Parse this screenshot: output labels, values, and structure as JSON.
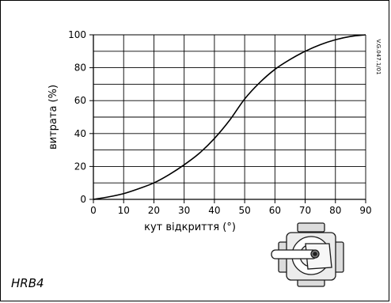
{
  "chart_data": {
    "type": "line",
    "title": "",
    "xlabel": "кут відкриття (°)",
    "ylabel": "витрата (%)",
    "xlim": [
      0,
      90
    ],
    "ylim": [
      0,
      100
    ],
    "xticks": [
      "0",
      "10",
      "20",
      "30",
      "40",
      "50",
      "60",
      "70",
      "80",
      "90"
    ],
    "yticks": [
      "0",
      "20",
      "40",
      "60",
      "80",
      "100"
    ],
    "grid": true,
    "legend": "none",
    "series": [
      {
        "x": [
          0,
          5,
          10,
          15,
          20,
          25,
          30,
          35,
          40,
          45,
          50,
          55,
          60,
          65,
          70,
          75,
          80,
          85,
          90
        ],
        "values": [
          0,
          1.5,
          3.5,
          6.5,
          10,
          15,
          21,
          28,
          37,
          48,
          61,
          71,
          79,
          85,
          90,
          94,
          97,
          99,
          100
        ]
      }
    ]
  },
  "model_label": "HRB4",
  "drawing_code": "V.G.047.1/01"
}
